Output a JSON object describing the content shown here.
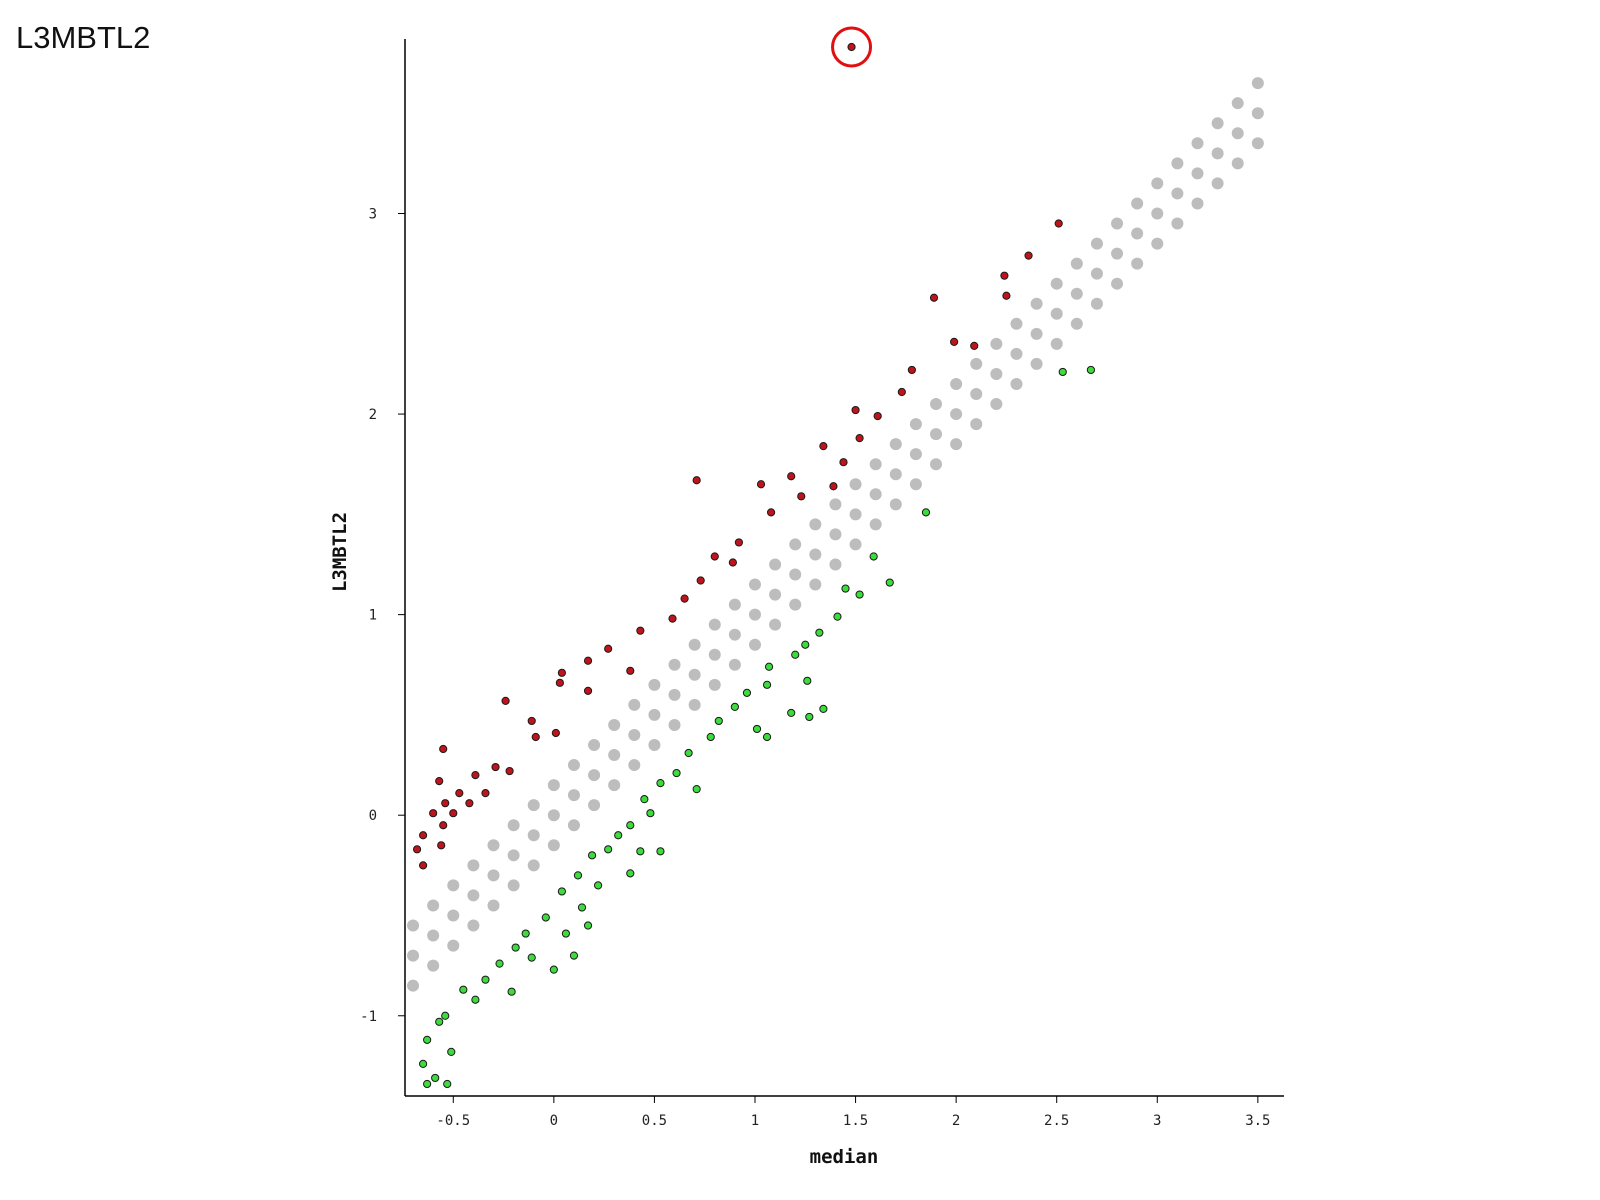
{
  "chart_data": {
    "type": "scatter",
    "title": "L3MBTL2",
    "xlabel": "median",
    "ylabel": "L3MBTL2",
    "xlim": [
      -0.74,
      3.63
    ],
    "ylim": [
      -1.4,
      3.87
    ],
    "xticks": [
      -0.5,
      0,
      0.5,
      1,
      1.5,
      2,
      2.5,
      3,
      3.5
    ],
    "yticks": [
      -1,
      0,
      1,
      2,
      3
    ],
    "grid": false,
    "series": [
      {
        "color": "#bdbdbd",
        "x": [
          -0.7,
          -0.7,
          -0.7,
          -0.6,
          -0.6,
          -0.6,
          -0.5,
          -0.5,
          -0.5,
          -0.4,
          -0.4,
          -0.4,
          -0.3,
          -0.3,
          -0.3,
          -0.2,
          -0.2,
          -0.2,
          -0.1,
          -0.1,
          -0.1,
          0,
          0,
          0,
          0.1,
          0.1,
          0.1,
          0.2,
          0.2,
          0.2,
          0.3,
          0.3,
          0.3,
          0.4,
          0.4,
          0.4,
          0.5,
          0.5,
          0.5,
          0.6,
          0.6,
          0.6,
          0.7,
          0.7,
          0.7,
          0.8,
          0.8,
          0.8,
          0.9,
          0.9,
          0.9,
          1,
          1,
          1,
          1.1,
          1.1,
          1.1,
          1.2,
          1.2,
          1.2,
          1.3,
          1.3,
          1.3,
          1.4,
          1.4,
          1.4,
          1.5,
          1.5,
          1.5,
          1.6,
          1.6,
          1.6,
          1.7,
          1.7,
          1.7,
          1.8,
          1.8,
          1.8,
          1.9,
          1.9,
          1.9,
          2,
          2,
          2,
          2.1,
          2.1,
          2.1,
          2.2,
          2.2,
          2.2,
          2.3,
          2.3,
          2.3,
          2.4,
          2.4,
          2.4,
          2.5,
          2.5,
          2.5,
          2.6,
          2.6,
          2.6,
          2.7,
          2.7,
          2.7,
          2.8,
          2.8,
          2.8,
          2.9,
          2.9,
          2.9,
          3,
          3,
          3,
          3.1,
          3.1,
          3.1,
          3.2,
          3.2,
          3.2,
          3.3,
          3.3,
          3.3,
          3.4,
          3.4,
          3.4,
          3.5,
          3.5,
          3.5
        ],
        "values": [
          -0.85,
          -0.7,
          -0.55,
          -0.75,
          -0.6,
          -0.45,
          -0.65,
          -0.5,
          -0.35,
          -0.55,
          -0.4,
          -0.25,
          -0.45,
          -0.3,
          -0.15,
          -0.35,
          -0.2,
          -0.05,
          -0.25,
          -0.1,
          0.05,
          -0.15,
          0,
          0.15,
          -0.05,
          0.1,
          0.25,
          0.05,
          0.2,
          0.35,
          0.15,
          0.3,
          0.45,
          0.25,
          0.4,
          0.55,
          0.35,
          0.5,
          0.65,
          0.45,
          0.6,
          0.75,
          0.55,
          0.7,
          0.85,
          0.65,
          0.8,
          0.95,
          0.75,
          0.9,
          1.05,
          0.85,
          1,
          1.15,
          0.95,
          1.1,
          1.25,
          1.05,
          1.2,
          1.35,
          1.15,
          1.3,
          1.45,
          1.25,
          1.4,
          1.55,
          1.35,
          1.5,
          1.65,
          1.45,
          1.6,
          1.75,
          1.55,
          1.7,
          1.85,
          1.65,
          1.8,
          1.95,
          1.75,
          1.9,
          2.05,
          1.85,
          2,
          2.15,
          1.95,
          2.1,
          2.25,
          2.05,
          2.2,
          2.35,
          2.15,
          2.3,
          2.45,
          2.25,
          2.4,
          2.55,
          2.35,
          2.5,
          2.65,
          2.45,
          2.6,
          2.75,
          2.55,
          2.7,
          2.85,
          2.65,
          2.8,
          2.95,
          2.75,
          2.9,
          3.05,
          2.85,
          3,
          3.15,
          2.95,
          3.1,
          3.25,
          3.05,
          3.2,
          3.35,
          3.15,
          3.3,
          3.45,
          3.25,
          3.4,
          3.55,
          3.35,
          3.5,
          3.65
        ]
      },
      {
        "color": "#c0141c",
        "x": [
          1.48,
          2.51,
          2.36,
          2.24,
          2.25,
          1.89,
          2.09,
          1.99,
          1.78,
          1.73,
          1.5,
          1.61,
          1.52,
          1.34,
          1.44,
          0.71,
          1.03,
          1.18,
          1.39,
          1.08,
          1.23,
          0.92,
          0.8,
          0.89,
          0.73,
          0.65,
          0.59,
          0.43,
          0.27,
          0.17,
          0.04,
          0.03,
          0.38,
          0.17,
          -0.24,
          -0.11,
          -0.09,
          0.01,
          -0.55,
          -0.29,
          -0.39,
          -0.57,
          -0.47,
          -0.54,
          -0.34,
          -0.6,
          -0.65,
          -0.55,
          -0.5,
          -0.68,
          -0.56,
          -0.65,
          -0.42,
          -0.22
        ],
        "values": [
          3.83,
          2.95,
          2.79,
          2.69,
          2.59,
          2.58,
          2.34,
          2.36,
          2.22,
          2.11,
          2.02,
          1.99,
          1.88,
          1.84,
          1.76,
          1.67,
          1.65,
          1.69,
          1.64,
          1.51,
          1.59,
          1.36,
          1.29,
          1.26,
          1.17,
          1.08,
          0.98,
          0.92,
          0.83,
          0.77,
          0.71,
          0.66,
          0.72,
          0.62,
          0.57,
          0.47,
          0.39,
          0.41,
          0.33,
          0.24,
          0.2,
          0.17,
          0.11,
          0.06,
          0.11,
          0.01,
          -0.1,
          -0.05,
          0.01,
          -0.17,
          -0.15,
          -0.25,
          0.06,
          0.22
        ]
      },
      {
        "color": "#3ddc3d",
        "x": [
          2.67,
          2.53,
          1.85,
          1.67,
          1.59,
          1.52,
          1.45,
          1.41,
          1.32,
          1.25,
          1.2,
          1.26,
          1.34,
          1.27,
          1.18,
          1.06,
          1.07,
          0.96,
          0.9,
          1.01,
          1.06,
          0.82,
          0.78,
          0.67,
          0.71,
          0.61,
          0.53,
          0.45,
          0.48,
          0.38,
          0.32,
          0.53,
          0.43,
          0.27,
          0.19,
          0.38,
          0.22,
          0.12,
          0.04,
          0.14,
          0.17,
          0.06,
          -0.04,
          -0.14,
          -0.19,
          -0.11,
          0,
          0.1,
          -0.27,
          -0.34,
          -0.21,
          -0.39,
          -0.45,
          -0.54,
          -0.57,
          -0.63,
          -0.51,
          -0.65,
          -0.59,
          -0.53,
          -0.63
        ],
        "values": [
          2.22,
          2.21,
          1.51,
          1.16,
          1.29,
          1.1,
          1.13,
          0.99,
          0.91,
          0.85,
          0.8,
          0.67,
          0.53,
          0.49,
          0.51,
          0.65,
          0.74,
          0.61,
          0.54,
          0.43,
          0.39,
          0.47,
          0.39,
          0.31,
          0.13,
          0.21,
          0.16,
          0.08,
          0.01,
          -0.05,
          -0.1,
          -0.18,
          -0.18,
          -0.17,
          -0.2,
          -0.29,
          -0.35,
          -0.3,
          -0.38,
          -0.46,
          -0.55,
          -0.59,
          -0.51,
          -0.59,
          -0.66,
          -0.71,
          -0.77,
          -0.7,
          -0.74,
          -0.82,
          -0.88,
          -0.92,
          -0.87,
          -1,
          -1.03,
          -1.12,
          -1.18,
          -1.24,
          -1.31,
          -1.34,
          -1.34
        ]
      }
    ]
  }
}
